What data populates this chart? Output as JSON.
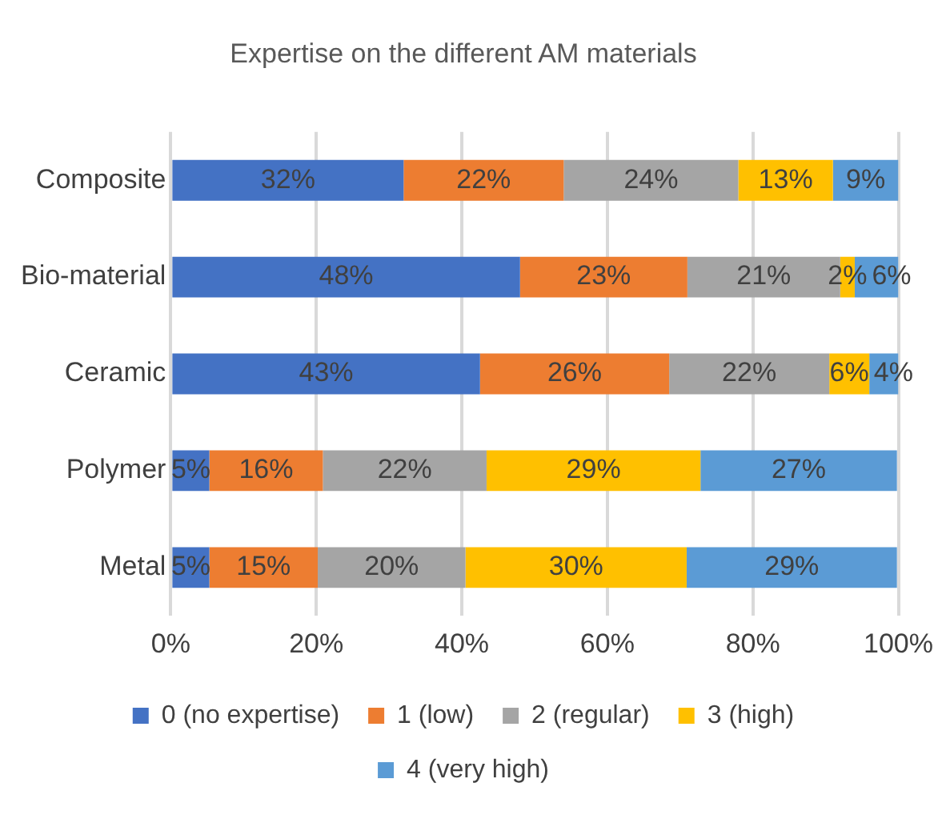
{
  "chart_data": {
    "type": "bar",
    "orientation": "horizontal",
    "stacked": true,
    "title": "Expertise on the different AM materials",
    "categories": [
      "Composite",
      "Bio-material",
      "Ceramic",
      "Polymer",
      "Metal"
    ],
    "series": [
      {
        "name": "0 (no expertise)",
        "color": "#4472c4",
        "values": [
          32,
          48,
          42.5,
          5.3,
          5.3
        ],
        "value_labels": [
          "32%",
          "48%",
          "43%",
          "5%",
          "5%"
        ]
      },
      {
        "name": "1 (low)",
        "color": "#ed7d31",
        "values": [
          22,
          23,
          26,
          15.6,
          14.9
        ],
        "value_labels": [
          "22%",
          "23%",
          "26%",
          "16%",
          "15%"
        ]
      },
      {
        "name": "2 (regular)",
        "color": "#a5a5a5",
        "values": [
          24,
          21,
          22,
          22.5,
          20.3
        ],
        "value_labels": [
          "24%",
          "21%",
          "22%",
          "22%",
          "20%"
        ]
      },
      {
        "name": "3 (high)",
        "color": "#ffc000",
        "values": [
          13,
          2,
          5.5,
          29.4,
          30.4
        ],
        "value_labels": [
          "13%",
          "2%",
          "6%",
          "29%",
          "30%"
        ]
      },
      {
        "name": "4 (very high)",
        "color": "#5b9bd5",
        "values": [
          9,
          6,
          4,
          27,
          28.9
        ],
        "value_labels": [
          "9%",
          "6%",
          "4%",
          "27%",
          "29%"
        ]
      }
    ],
    "xlim": [
      0,
      100
    ],
    "xticks": [
      {
        "value": 0,
        "label": "0%"
      },
      {
        "value": 20,
        "label": "20%"
      },
      {
        "value": 40,
        "label": "40%"
      },
      {
        "value": 60,
        "label": "60%"
      },
      {
        "value": 80,
        "label": "80%"
      },
      {
        "value": 100,
        "label": "100%"
      }
    ],
    "grid": "x",
    "legend": "bottom"
  }
}
